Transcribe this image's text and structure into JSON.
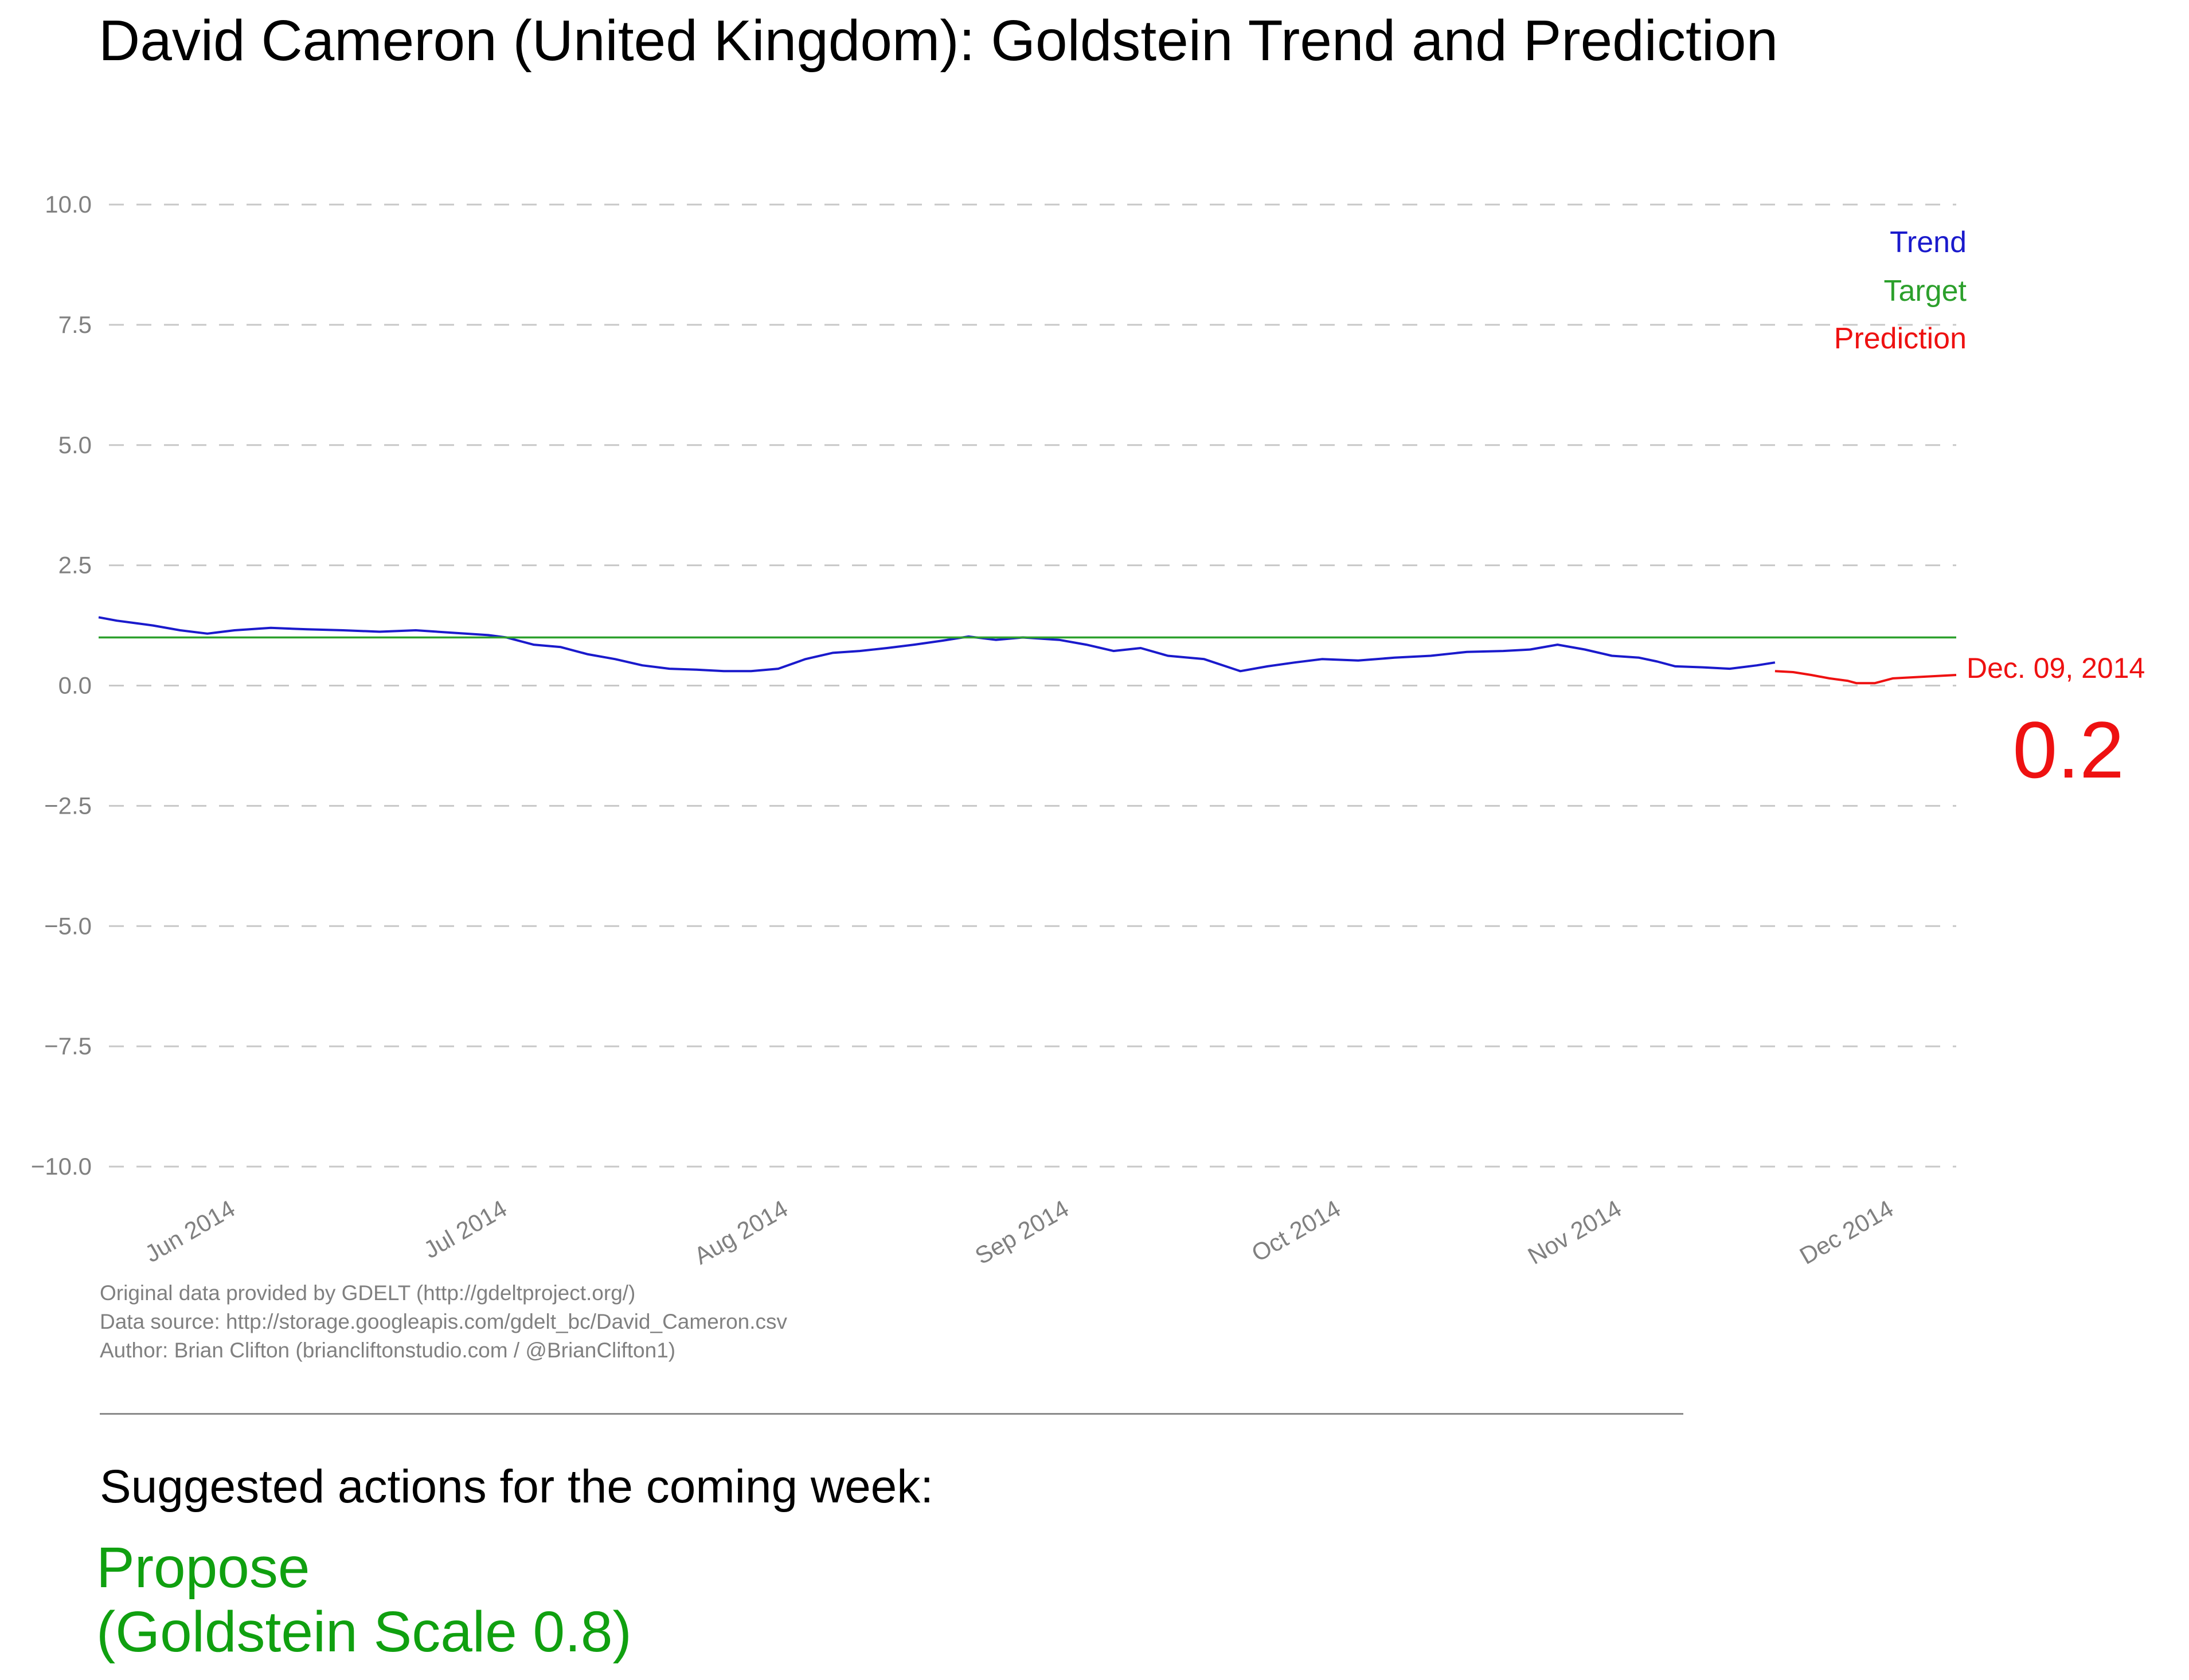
{
  "title": "David Cameron (United Kingdom): Goldstein Trend and Prediction",
  "colors": {
    "trend": "#1a1acc",
    "target": "#2ca02c",
    "prediction": "#ee1111",
    "grid": "#c8c8c8",
    "axis_text": "#808080"
  },
  "chart_data": {
    "type": "line",
    "title": "David Cameron (United Kingdom): Goldstein Trend and Prediction",
    "xlabel": "",
    "ylabel": "",
    "ylim": [
      -10.0,
      10.0
    ],
    "xlim": [
      "2014-05-18",
      "2014-12-09"
    ],
    "grid": "horizontal dashed",
    "yticks": [
      "10.0",
      "7.5",
      "5.0",
      "2.5",
      "0.0",
      "−2.5",
      "−5.0",
      "−7.5",
      "−10.0"
    ],
    "ytick_values": [
      10.0,
      7.5,
      5.0,
      2.5,
      0.0,
      -2.5,
      -5.0,
      -7.5,
      -10.0
    ],
    "xticks": [
      {
        "label": "Jun 2014",
        "date": "2014-06-01"
      },
      {
        "label": "Jul 2014",
        "date": "2014-07-01"
      },
      {
        "label": "Aug 2014",
        "date": "2014-08-01"
      },
      {
        "label": "Sep 2014",
        "date": "2014-09-01"
      },
      {
        "label": "Oct 2014",
        "date": "2014-10-01"
      },
      {
        "label": "Nov 2014",
        "date": "2014-11-01"
      },
      {
        "label": "Dec 2014",
        "date": "2014-12-01"
      }
    ],
    "legend": {
      "placement": "top-right",
      "entries": [
        "Trend",
        "Target",
        "Prediction"
      ]
    },
    "series": [
      {
        "name": "Trend",
        "x": [
          "2014-05-18",
          "2014-05-20",
          "2014-05-22",
          "2014-05-24",
          "2014-05-27",
          "2014-05-30",
          "2014-06-02",
          "2014-06-06",
          "2014-06-10",
          "2014-06-14",
          "2014-06-18",
          "2014-06-22",
          "2014-06-26",
          "2014-06-30",
          "2014-07-02",
          "2014-07-05",
          "2014-07-08",
          "2014-07-11",
          "2014-07-14",
          "2014-07-17",
          "2014-07-20",
          "2014-07-23",
          "2014-07-26",
          "2014-07-29",
          "2014-08-01",
          "2014-08-04",
          "2014-08-07",
          "2014-08-10",
          "2014-08-13",
          "2014-08-16",
          "2014-08-19",
          "2014-08-22",
          "2014-08-25",
          "2014-08-28",
          "2014-09-01",
          "2014-09-04",
          "2014-09-07",
          "2014-09-10",
          "2014-09-13",
          "2014-09-17",
          "2014-09-21",
          "2014-09-24",
          "2014-09-27",
          "2014-09-30",
          "2014-10-04",
          "2014-10-08",
          "2014-10-12",
          "2014-10-16",
          "2014-10-20",
          "2014-10-23",
          "2014-10-26",
          "2014-10-29",
          "2014-11-01",
          "2014-11-04",
          "2014-11-06",
          "2014-11-08",
          "2014-11-11",
          "2014-11-14",
          "2014-11-17",
          "2014-11-19"
        ],
        "y": [
          1.42,
          1.35,
          1.3,
          1.25,
          1.15,
          1.08,
          1.15,
          1.2,
          1.17,
          1.15,
          1.12,
          1.15,
          1.1,
          1.05,
          1.0,
          0.85,
          0.8,
          0.65,
          0.55,
          0.42,
          0.35,
          0.33,
          0.3,
          0.3,
          0.35,
          0.55,
          0.68,
          0.72,
          0.78,
          0.85,
          0.93,
          1.02,
          0.95,
          1.0,
          0.95,
          0.85,
          0.72,
          0.78,
          0.62,
          0.55,
          0.3,
          0.4,
          0.48,
          0.55,
          0.52,
          0.58,
          0.62,
          0.7,
          0.72,
          0.75,
          0.85,
          0.75,
          0.62,
          0.58,
          0.5,
          0.4,
          0.38,
          0.35,
          0.42,
          0.48
        ]
      },
      {
        "name": "Target",
        "x": [
          "2014-05-18",
          "2014-12-09"
        ],
        "y": [
          1.0,
          1.0
        ]
      },
      {
        "name": "Prediction",
        "x": [
          "2014-11-19",
          "2014-11-21",
          "2014-11-23",
          "2014-11-25",
          "2014-11-27",
          "2014-11-28",
          "2014-11-30",
          "2014-12-02",
          "2014-12-05",
          "2014-12-09"
        ],
        "y": [
          0.3,
          0.28,
          0.22,
          0.15,
          0.1,
          0.05,
          0.05,
          0.15,
          0.18,
          0.22
        ]
      }
    ],
    "annotation": {
      "date_label": "Dec. 09, 2014",
      "value_label": "0.2"
    }
  },
  "credits": [
    "Original data provided by GDELT (http://gdeltproject.org/)",
    "Data source: http://storage.googleapis.com/gdelt_bc/David_Cameron.csv",
    "Author: Brian Clifton (briancliftonstudio.com / @BrianClifton1)"
  ],
  "actions": {
    "heading": "Suggested actions for the coming week:",
    "line1": "Propose",
    "line2": "(Goldstein Scale 0.8)"
  }
}
